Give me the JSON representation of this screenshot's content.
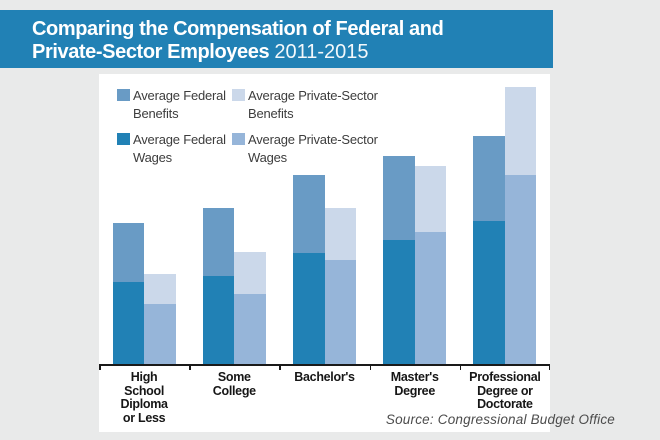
{
  "page": {
    "background": "#e9eaea",
    "card_background": "#ffffff"
  },
  "header": {
    "background": "#2181b5",
    "title_line1": "Comparing the Compensation of Federal and",
    "title_line2_bold": "Private-Sector Employees",
    "title_line2_period": "2011-2015"
  },
  "legend": {
    "items": [
      {
        "key": "federal-benefits",
        "label": "Average Federal Benefits",
        "color": "#699bc5"
      },
      {
        "key": "private-benefits",
        "label": "Average Private-Sector Benefits",
        "color": "#cbd8ea"
      },
      {
        "key": "federal-wages",
        "label": "Average Federal Wages",
        "color": "#2181b5"
      },
      {
        "key": "private-wages",
        "label": "Average Private-Sector Wages",
        "color": "#96b5d9"
      }
    ]
  },
  "source_note": "Source: Congressional Budget Office",
  "chart_data": {
    "type": "bar",
    "subtype": "grouped-stacked",
    "title": "Comparing the Compensation of Federal and Private-Sector Employees 2011-2015",
    "xlabel": "",
    "ylabel": "",
    "y_axis_shown": false,
    "grid": false,
    "legend_position": "top-left",
    "units": "relative bar-segment heights in screenshot pixels (chart displays no numeric axis or value labels)",
    "categories": [
      "High School Diploma or Less",
      "Some College",
      "Bachelor's",
      "Master's Degree",
      "Professional Degree or Doctorate"
    ],
    "category_label_lines": [
      [
        "High",
        "School",
        "Diploma",
        "or Less"
      ],
      [
        "Some",
        "College"
      ],
      [
        "Bachelor's"
      ],
      [
        "Master's",
        "Degree"
      ],
      [
        "Professional",
        "Degree or",
        "Doctorate"
      ]
    ],
    "series": [
      {
        "name": "Average Federal Wages",
        "stack": "federal",
        "position": "bottom",
        "color": "#2181b5",
        "values": [
          82,
          88,
          111,
          124,
          143
        ]
      },
      {
        "name": "Average Federal Benefits",
        "stack": "federal",
        "position": "top",
        "color": "#699bc5",
        "values": [
          59,
          68,
          78,
          84,
          85
        ]
      },
      {
        "name": "Average Private-Sector Wages",
        "stack": "private",
        "position": "bottom",
        "color": "#96b5d9",
        "values": [
          60,
          70,
          104,
          132,
          189
        ]
      },
      {
        "name": "Average Private-Sector Benefits",
        "stack": "private",
        "position": "top",
        "color": "#cbd8ea",
        "values": [
          30,
          42,
          52,
          66,
          88
        ]
      }
    ],
    "stack_totals": {
      "federal": [
        141,
        156,
        189,
        208,
        228
      ],
      "private": [
        90,
        112,
        156,
        198,
        277
      ]
    }
  }
}
